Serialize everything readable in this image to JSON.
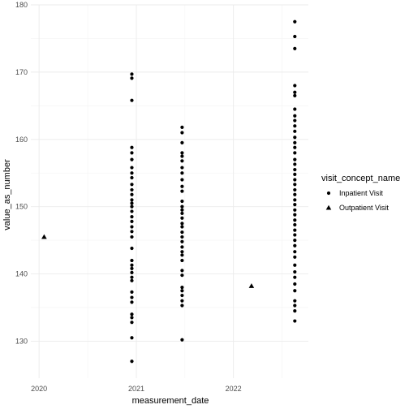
{
  "chart_data": {
    "type": "scatter",
    "xlabel": "measurement_date",
    "ylabel": "value_as_number",
    "x_type": "date",
    "xlim": [
      "2019-12-01",
      "2022-10-10"
    ],
    "ylim": [
      124.5,
      180
    ],
    "x_ticks": [
      {
        "value": "2020-01-01",
        "label": "2020"
      },
      {
        "value": "2021-01-01",
        "label": "2021"
      },
      {
        "value": "2022-01-01",
        "label": "2022"
      }
    ],
    "y_ticks": [
      130,
      140,
      150,
      160,
      170,
      180
    ],
    "grid": true,
    "legend": {
      "title": "visit_concept_name",
      "position": "right",
      "entries": [
        {
          "name": "Inpatient Visit",
          "shape": "circle"
        },
        {
          "name": "Outpatient Visit",
          "shape": "triangle"
        }
      ]
    },
    "series": [
      {
        "name": "Inpatient Visit",
        "shape": "circle",
        "points": [
          {
            "x": "2020-12-15",
            "y": [
              127,
              130.5,
              132.8,
              133.5,
              134,
              135.8,
              136.5,
              137.3,
              139,
              139.5,
              140.2,
              140.8,
              141.3,
              142,
              143.8,
              145.5,
              146.3,
              147,
              147.8,
              148.5,
              149.3,
              150,
              150.5,
              151,
              151.8,
              152.5,
              153.3,
              154.3,
              155,
              155.8,
              157,
              158,
              158.8,
              165.8,
              169.1,
              169.7
            ]
          },
          {
            "x": "2021-06-22",
            "y": [
              130.2,
              135.3,
              136,
              136.8,
              137.5,
              138,
              139.8,
              140.5,
              142,
              142.8,
              143.3,
              144,
              144.8,
              145.5,
              146.2,
              147,
              147.5,
              148.3,
              149,
              149.5,
              150,
              150.8,
              152.3,
              153,
              154,
              155,
              155.8,
              156.8,
              157.5,
              158,
              159.5,
              161,
              161.8
            ]
          },
          {
            "x": "2022-08-20",
            "y": [
              133,
              134.5,
              135.3,
              136,
              137.5,
              138.5,
              139.5,
              140.3,
              141.3,
              142.5,
              143.3,
              144.2,
              145,
              145.8,
              146.5,
              147.3,
              148,
              148.8,
              149.5,
              150.3,
              151,
              151.8,
              152.5,
              153.3,
              154,
              154.8,
              155.5,
              156.3,
              157,
              158,
              158.8,
              159.5,
              160.3,
              161.2,
              162,
              162.8,
              163.5,
              164.5,
              166.5,
              167,
              168,
              173.5,
              175.3,
              177.5
            ]
          }
        ]
      },
      {
        "name": "Outpatient Visit",
        "shape": "triangle",
        "points": [
          {
            "x": "2020-01-20",
            "y": [
              145.5
            ]
          },
          {
            "x": "2022-03-10",
            "y": [
              138.2
            ]
          }
        ]
      }
    ]
  }
}
